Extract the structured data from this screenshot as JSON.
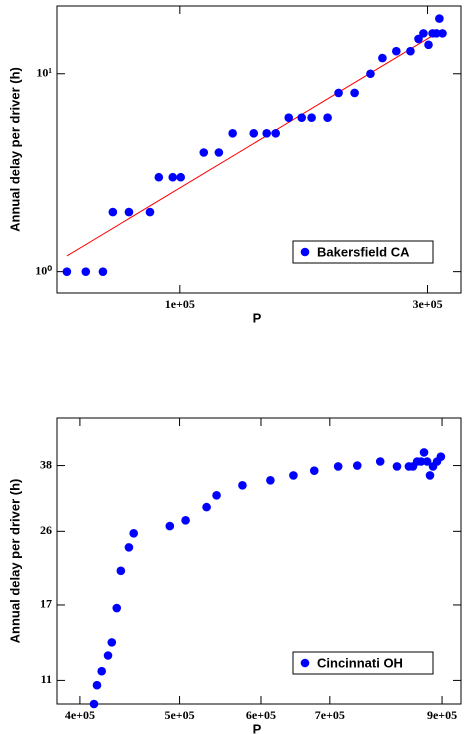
{
  "chart_data": [
    {
      "type": "scatter",
      "xlabel": "P",
      "ylabel": "Annual delay per driver (h)",
      "xscale": "log",
      "yscale": "log",
      "xlim": [
        58000,
        348000
      ],
      "ylim": [
        0.78,
        22
      ],
      "xticks": [
        {
          "value": 100000,
          "label": "1e+05"
        },
        {
          "value": 300000,
          "label": "3e+05"
        }
      ],
      "yticks": [
        {
          "value": 1,
          "label": "10⁰"
        },
        {
          "value": 10,
          "label": "10¹"
        }
      ],
      "legend": "lower right",
      "series": [
        {
          "name": "Bakersfield CA",
          "color": "#0000ff",
          "x": [
            60600,
            65900,
            71100,
            74300,
            79800,
            87600,
            91100,
            96900,
            100400,
            111200,
            118900,
            126400,
            138800,
            147000,
            153000,
            162100,
            171700,
            179400,
            192600,
            202200,
            217100,
            232900,
            245600,
            261200,
            278100,
            288200,
            294600,
            301300,
            306800,
            312100,
            316200,
            320600
          ],
          "values": [
            1,
            1,
            1,
            2,
            2,
            2,
            3,
            3,
            3,
            4,
            4,
            5,
            5,
            5,
            5,
            6,
            6,
            6,
            6,
            8,
            8,
            10,
            12,
            13,
            13,
            15,
            16,
            14,
            16,
            16,
            19,
            16
          ]
        }
      ],
      "fit": {
        "color": "#ff0000",
        "x": [
          60600,
          320600
        ],
        "values": [
          1.2,
          16.7
        ]
      }
    },
    {
      "type": "scatter",
      "xlabel": "P",
      "ylabel": "Annual delay per driver (h)",
      "xscale": "log",
      "yscale": "log",
      "xlim": [
        380000,
        939000
      ],
      "ylim": [
        9.6,
        50
      ],
      "xticks": [
        {
          "value": 400000,
          "label": "4e+05"
        },
        {
          "value": 500000,
          "label": "5e+05"
        },
        {
          "value": 600000,
          "label": "6e+05"
        },
        {
          "value": 700000,
          "label": "7e+05"
        },
        {
          "value": 900000,
          "label": "9e+05"
        }
      ],
      "yticks": [
        11,
        17,
        26,
        38
      ],
      "legend": "lower right",
      "series": [
        {
          "name": "Cincinnati OH",
          "color": "#0000ff",
          "x": [
            412800,
            415600,
            420000,
            426000,
            429600,
            434400,
            438400,
            446400,
            451200,
            489200,
            506800,
            531200,
            543200,
            575600,
            612800,
            645200,
            676000,
            713200,
            744400,
            783600,
            813600,
            835600,
            843200,
            851200,
            858800,
            864400,
            870400,
            876000,
            882000,
            890000,
            897600
          ],
          "values": [
            9.6,
            10.7,
            11.6,
            12.7,
            13.7,
            16.7,
            20.7,
            23.7,
            25.7,
            26.8,
            27.7,
            29.9,
            32.0,
            33.9,
            34.9,
            35.9,
            36.9,
            37.8,
            38.0,
            38.9,
            37.8,
            37.8,
            37.8,
            38.9,
            38.9,
            41.0,
            38.9,
            35.9,
            37.8,
            38.9,
            40.0
          ]
        }
      ]
    }
  ]
}
